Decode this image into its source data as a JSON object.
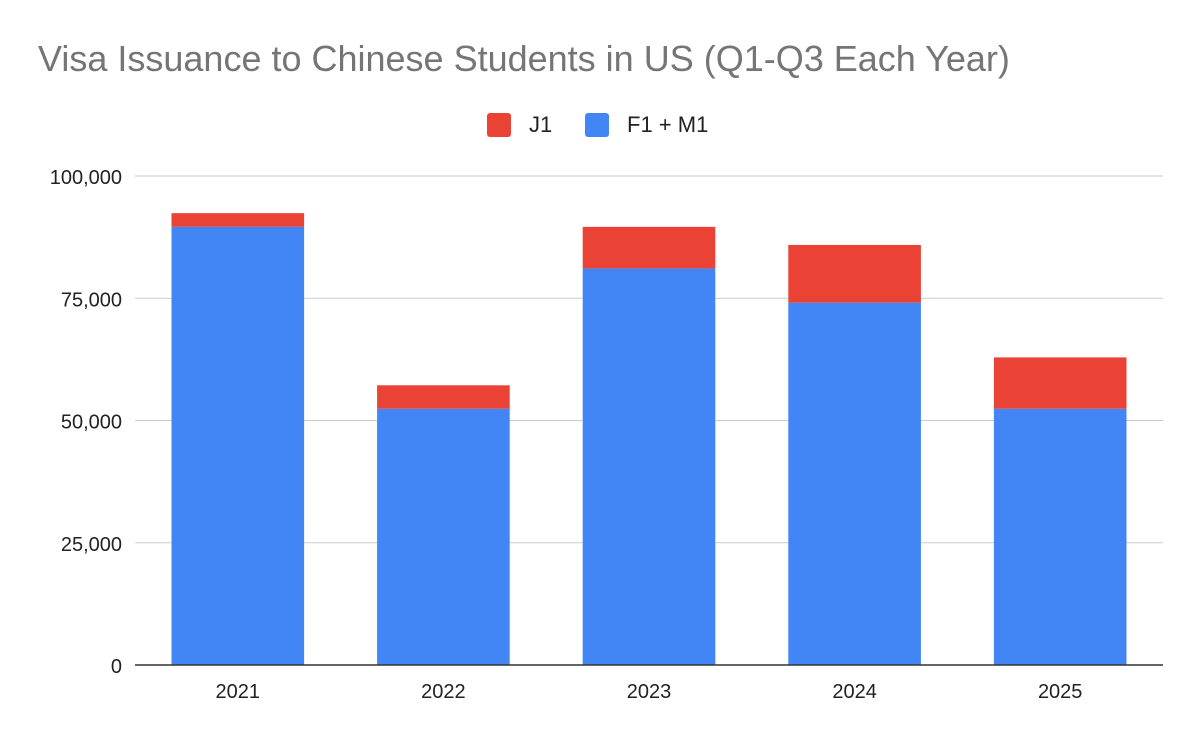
{
  "chart_data": {
    "type": "bar",
    "stacked": true,
    "title": "Visa Issuance to Chinese Students in US (Q1-Q3 Each Year)",
    "categories": [
      "2021",
      "2022",
      "2023",
      "2024",
      "2025"
    ],
    "series": [
      {
        "name": "F1 + M1",
        "color": "#4285F4",
        "values": [
          89600,
          52400,
          81100,
          74100,
          52400
        ]
      },
      {
        "name": "J1",
        "color": "#EA4335",
        "values": [
          2800,
          4800,
          8500,
          11800,
          10500
        ]
      }
    ],
    "legend_order": [
      "J1",
      "F1 + M1"
    ],
    "legend_position": "top",
    "ylim": [
      0,
      100000
    ],
    "yticks": [
      0,
      25000,
      50000,
      75000,
      100000
    ],
    "ytick_labels": [
      "0",
      "25,000",
      "50,000",
      "75,000",
      "100,000"
    ],
    "grid": true,
    "xlabel": "",
    "ylabel": ""
  }
}
